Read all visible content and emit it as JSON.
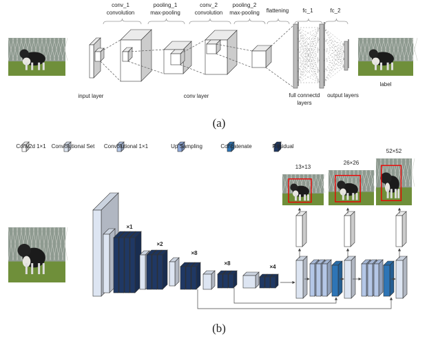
{
  "figure_a": {
    "stages": [
      {
        "name": "conv_1",
        "desc": "convolution"
      },
      {
        "name": "pooling_1",
        "desc": "max-pooling"
      },
      {
        "name": "conv_2",
        "desc": "convolution"
      },
      {
        "name": "pooling_2",
        "desc": "max-pooling"
      }
    ],
    "flattening": "flattening",
    "fc_1": "fc_1",
    "fc_2": "fc_2",
    "input_label": "input layer",
    "conv_label": "conv layer",
    "fc_label": [
      "full connectd",
      "layers"
    ],
    "output_label": "output layers",
    "image_label": "label",
    "caption": "(a)"
  },
  "figure_b": {
    "legend": [
      "Conv2d 1×1",
      "Convolutional Set",
      "Convolutional 1×1",
      "Up Sampling",
      "Concatenate",
      "Residual"
    ],
    "repeats": [
      "×1",
      "×2",
      "×8",
      "×8",
      "×4"
    ],
    "scales": [
      "13×13",
      "26×26",
      "52×52"
    ],
    "caption": "(b)"
  }
}
